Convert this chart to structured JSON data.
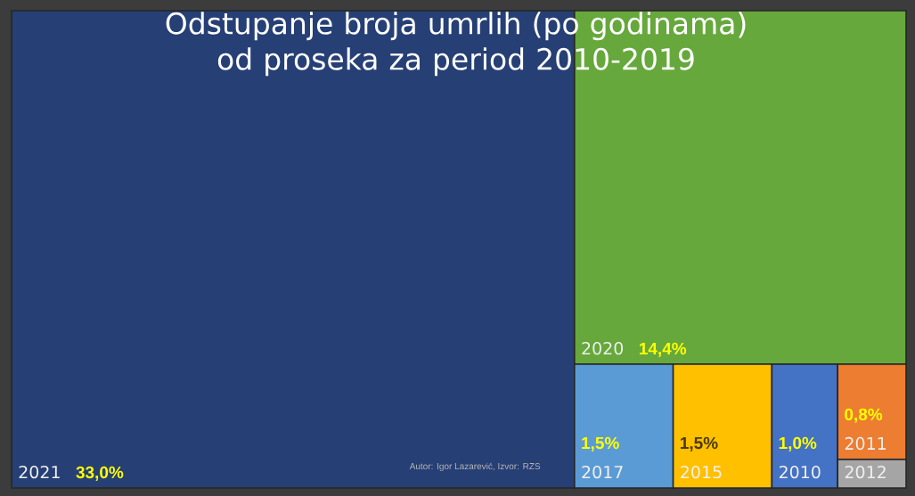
{
  "chart_data": {
    "type": "other",
    "title": "Odstupanje broja umrlih (po godinama) od proseka za period 2010-2019",
    "categories": [
      "2021",
      "2020",
      "2017",
      "2015",
      "2010",
      "2011",
      "2012"
    ],
    "values": [
      33.0,
      14.4,
      1.5,
      1.5,
      1.0,
      0.8,
      null
    ],
    "value_labels": [
      "33,0%",
      "14,4%",
      "1,5%",
      "1,5%",
      "1,0%",
      "0,8%",
      null
    ],
    "colors": [
      "#263f75",
      "#66a83c",
      "#5b9bd5",
      "#ffc000",
      "#4472c4",
      "#ed7d31",
      "#a5a5a5"
    ],
    "annotations": [
      "Autor: Igor Lazarević, Izvor: RZS"
    ]
  }
}
